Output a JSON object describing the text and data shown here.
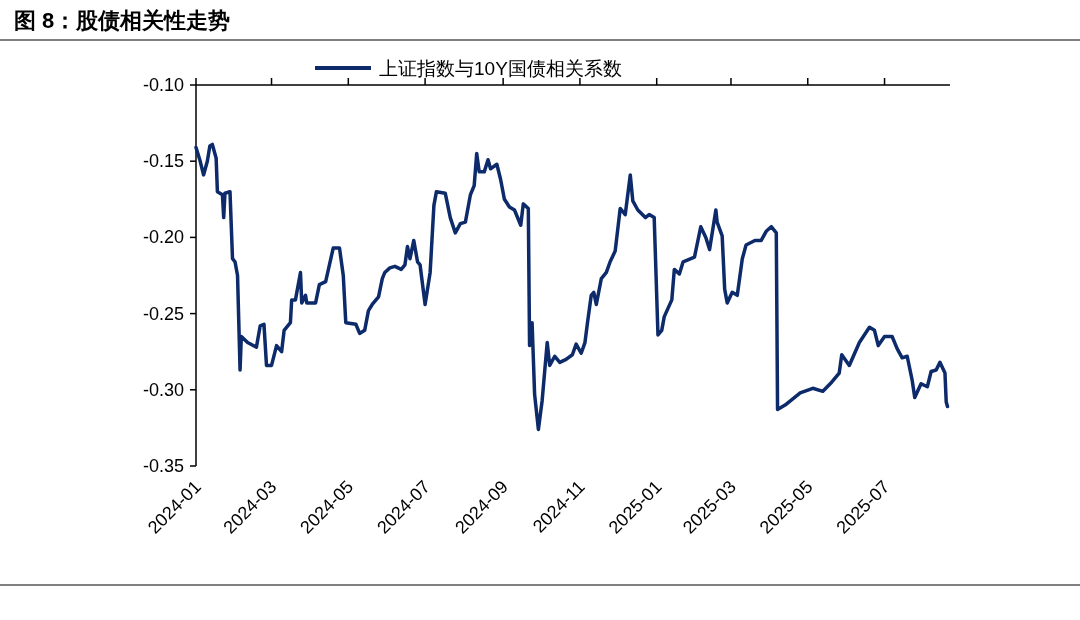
{
  "chart_data": {
    "type": "line",
    "title": "图 8：股债相关性走势",
    "x": [
      "2024-01-01",
      "2024-01-04",
      "2024-01-07",
      "2024-01-10",
      "2024-01-12",
      "2024-01-14",
      "2024-01-17",
      "2024-01-18",
      "2024-01-22",
      "2024-01-23",
      "2024-01-24",
      "2024-01-28",
      "2024-01-30",
      "2024-02-01",
      "2024-02-03",
      "2024-02-05",
      "2024-02-06",
      "2024-02-11",
      "2024-02-18",
      "2024-02-21",
      "2024-02-24",
      "2024-02-26",
      "2024-03-01",
      "2024-03-05",
      "2024-03-09",
      "2024-03-11",
      "2024-03-16",
      "2024-03-17",
      "2024-03-20",
      "2024-03-24",
      "2024-03-25",
      "2024-03-28",
      "2024-03-29",
      "2024-04-05",
      "2024-04-08",
      "2024-04-13",
      "2024-04-19",
      "2024-04-24",
      "2024-04-27",
      "2024-04-29",
      "2024-05-07",
      "2024-05-10",
      "2024-05-14",
      "2024-05-17",
      "2024-05-20",
      "2024-05-25",
      "2024-05-28",
      "2024-05-30",
      "2024-06-03",
      "2024-06-07",
      "2024-06-12",
      "2024-06-15",
      "2024-06-17",
      "2024-06-19",
      "2024-06-22",
      "2024-06-25",
      "2024-06-27",
      "2024-07-01",
      "2024-07-05",
      "2024-07-08",
      "2024-07-10",
      "2024-07-17",
      "2024-07-21",
      "2024-07-25",
      "2024-07-29",
      "2024-08-02",
      "2024-08-06",
      "2024-08-09",
      "2024-08-11",
      "2024-08-13",
      "2024-08-17",
      "2024-08-20",
      "2024-08-22",
      "2024-08-27",
      "2024-08-30",
      "2024-09-02",
      "2024-09-06",
      "2024-09-10",
      "2024-09-15",
      "2024-09-17",
      "2024-09-21",
      "2024-09-22",
      "2024-09-24",
      "2024-09-26",
      "2024-09-29",
      "2024-10-02",
      "2024-10-06",
      "2024-10-08",
      "2024-10-12",
      "2024-10-16",
      "2024-10-21",
      "2024-10-26",
      "2024-10-29",
      "2024-11-02",
      "2024-11-05",
      "2024-11-07",
      "2024-11-10",
      "2024-11-12",
      "2024-11-14",
      "2024-11-18",
      "2024-11-22",
      "2024-11-25",
      "2024-11-29",
      "2024-12-03",
      "2024-12-07",
      "2024-12-11",
      "2024-12-13",
      "2024-12-17",
      "2024-12-23",
      "2024-12-26",
      "2024-12-30",
      "2025-01-02",
      "2025-01-05",
      "2025-01-07",
      "2025-01-13",
      "2025-01-15",
      "2025-01-19",
      "2025-01-22",
      "2025-01-31",
      "2025-02-05",
      "2025-02-09",
      "2025-02-12",
      "2025-02-17",
      "2025-02-18",
      "2025-02-22",
      "2025-02-24",
      "2025-02-26",
      "2025-03-02",
      "2025-03-06",
      "2025-03-10",
      "2025-03-13",
      "2025-03-20",
      "2025-03-25",
      "2025-03-29",
      "2025-04-02",
      "2025-04-06",
      "2025-04-07",
      "2025-04-13",
      "2025-04-25",
      "2025-05-05",
      "2025-05-13",
      "2025-05-20",
      "2025-05-26",
      "2025-05-28",
      "2025-06-03",
      "2025-06-11",
      "2025-06-19",
      "2025-06-23",
      "2025-06-26",
      "2025-07-01",
      "2025-07-07",
      "2025-07-11",
      "2025-07-15",
      "2025-07-19",
      "2025-07-23",
      "2025-07-25",
      "2025-07-30",
      "2025-08-04",
      "2025-08-07",
      "2025-08-11",
      "2025-08-14",
      "2025-08-18",
      "2025-08-19",
      "2025-08-20"
    ],
    "series": [
      {
        "name": "上证指数与10Y国债相关系数",
        "color": "#0d2a6a",
        "values": [
          -0.141,
          -0.149,
          -0.159,
          -0.15,
          -0.14,
          -0.139,
          -0.148,
          -0.17,
          -0.172,
          -0.187,
          -0.171,
          -0.17,
          -0.214,
          -0.216,
          -0.225,
          -0.287,
          -0.265,
          -0.269,
          -0.272,
          -0.258,
          -0.257,
          -0.284,
          -0.284,
          -0.271,
          -0.275,
          -0.261,
          -0.256,
          -0.241,
          -0.241,
          -0.223,
          -0.243,
          -0.238,
          -0.243,
          -0.243,
          -0.231,
          -0.229,
          -0.207,
          -0.207,
          -0.225,
          -0.256,
          -0.257,
          -0.263,
          -0.261,
          -0.248,
          -0.244,
          -0.239,
          -0.227,
          -0.223,
          -0.22,
          -0.219,
          -0.221,
          -0.218,
          -0.206,
          -0.214,
          -0.202,
          -0.216,
          -0.218,
          -0.244,
          -0.223,
          -0.179,
          -0.17,
          -0.171,
          -0.187,
          -0.197,
          -0.191,
          -0.19,
          -0.172,
          -0.166,
          -0.145,
          -0.157,
          -0.157,
          -0.149,
          -0.155,
          -0.152,
          -0.162,
          -0.175,
          -0.18,
          -0.182,
          -0.192,
          -0.178,
          -0.181,
          -0.271,
          -0.256,
          -0.303,
          -0.326,
          -0.307,
          -0.269,
          -0.284,
          -0.278,
          -0.282,
          -0.28,
          -0.277,
          -0.27,
          -0.276,
          -0.269,
          -0.256,
          -0.238,
          -0.236,
          -0.244,
          -0.227,
          -0.223,
          -0.216,
          -0.209,
          -0.181,
          -0.185,
          -0.159,
          -0.176,
          -0.182,
          -0.187,
          -0.185,
          -0.187,
          -0.264,
          -0.261,
          -0.252,
          -0.241,
          -0.221,
          -0.224,
          -0.216,
          -0.213,
          -0.193,
          -0.2,
          -0.208,
          -0.182,
          -0.19,
          -0.199,
          -0.234,
          -0.243,
          -0.236,
          -0.238,
          -0.214,
          -0.205,
          -0.202,
          -0.202,
          -0.196,
          -0.193,
          -0.197,
          -0.313,
          -0.31,
          -0.302,
          -0.299,
          -0.301,
          -0.295,
          -0.289,
          -0.277,
          -0.284,
          -0.269,
          -0.259,
          -0.261,
          -0.271,
          -0.265,
          -0.265,
          -0.273,
          -0.279,
          -0.278,
          -0.294,
          -0.305,
          -0.296,
          -0.298,
          -0.288,
          -0.287,
          -0.282,
          -0.289,
          -0.308,
          -0.311
        ]
      }
    ],
    "xlim": [
      "2024-01-01",
      "2025-08-22"
    ],
    "xticks": [
      "2024-01",
      "2024-03",
      "2024-05",
      "2024-07",
      "2024-09",
      "2024-11",
      "2025-01",
      "2025-03",
      "2025-05",
      "2025-07"
    ],
    "ylim": [
      -0.35,
      -0.1
    ],
    "yticks": [
      {
        "value": -0.1,
        "label": "-0.10"
      },
      {
        "value": -0.15,
        "label": "-0.15"
      },
      {
        "value": -0.2,
        "label": "-0.20"
      },
      {
        "value": -0.25,
        "label": "-0.25"
      },
      {
        "value": -0.3,
        "label": "-0.30"
      },
      {
        "value": -0.35,
        "label": "-0.35"
      }
    ],
    "grid": false,
    "legend": "top",
    "marker": "none",
    "line_style": "solid"
  }
}
